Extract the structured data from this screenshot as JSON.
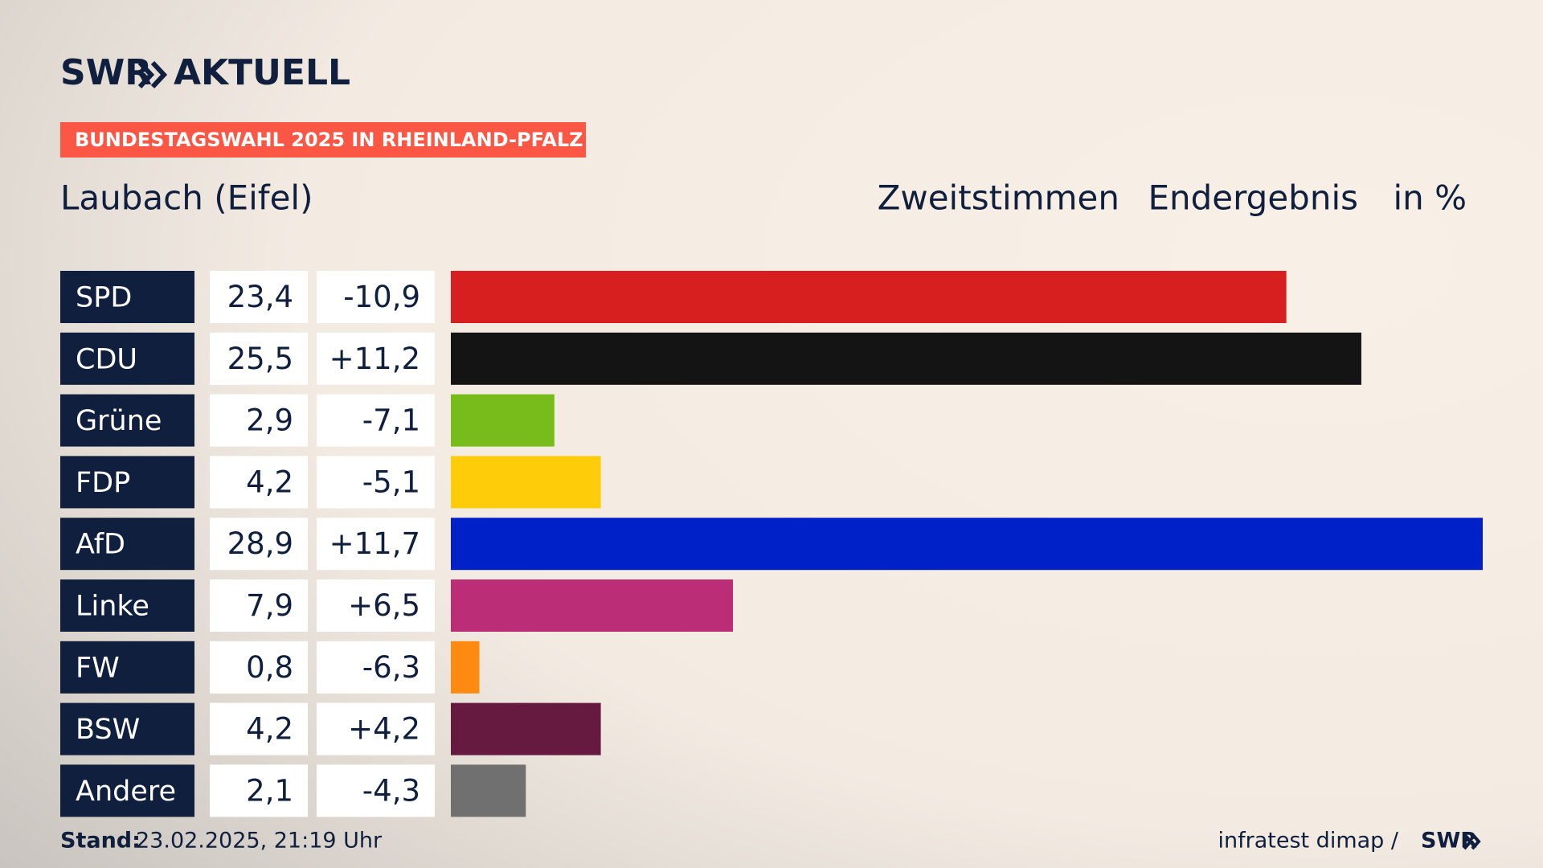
{
  "header": {
    "brand": "SWR",
    "brand_sub": "AKTUELL",
    "badge": "BUNDESTAGSWAHL 2025 IN RHEINLAND-PFALZ"
  },
  "chart_data": {
    "type": "bar",
    "orientation": "horizontal",
    "title": "Laubach (Eifel)",
    "subtitle": [
      "Zweitstimmen",
      "Endergebnis",
      "in %"
    ],
    "categories": [
      "SPD",
      "CDU",
      "Grüne",
      "FDP",
      "AfD",
      "Linke",
      "FW",
      "BSW",
      "Andere"
    ],
    "values": [
      23.4,
      25.5,
      2.9,
      4.2,
      28.9,
      7.9,
      0.8,
      4.2,
      2.1
    ],
    "value_labels": [
      "23,4",
      "25,5",
      "2,9",
      "4,2",
      "28,9",
      "7,9",
      "0,8",
      "4,2",
      "2,1"
    ],
    "changes": [
      "-10,9",
      "+11,2",
      "-7,1",
      "-5,1",
      "+11,7",
      "+6,5",
      "-6,3",
      "+4,2",
      "-4,3"
    ],
    "colors": [
      "#d71f1f",
      "#141414",
      "#78bc1b",
      "#ffcc0a",
      "#0021c8",
      "#bb2d76",
      "#ff8a12",
      "#661a3f",
      "#707070"
    ]
  },
  "footer": {
    "stand_label": "Stand:",
    "stand": "23.02.2025, 21:19 Uhr",
    "source": "infratest dimap /",
    "logo": "SWR"
  }
}
